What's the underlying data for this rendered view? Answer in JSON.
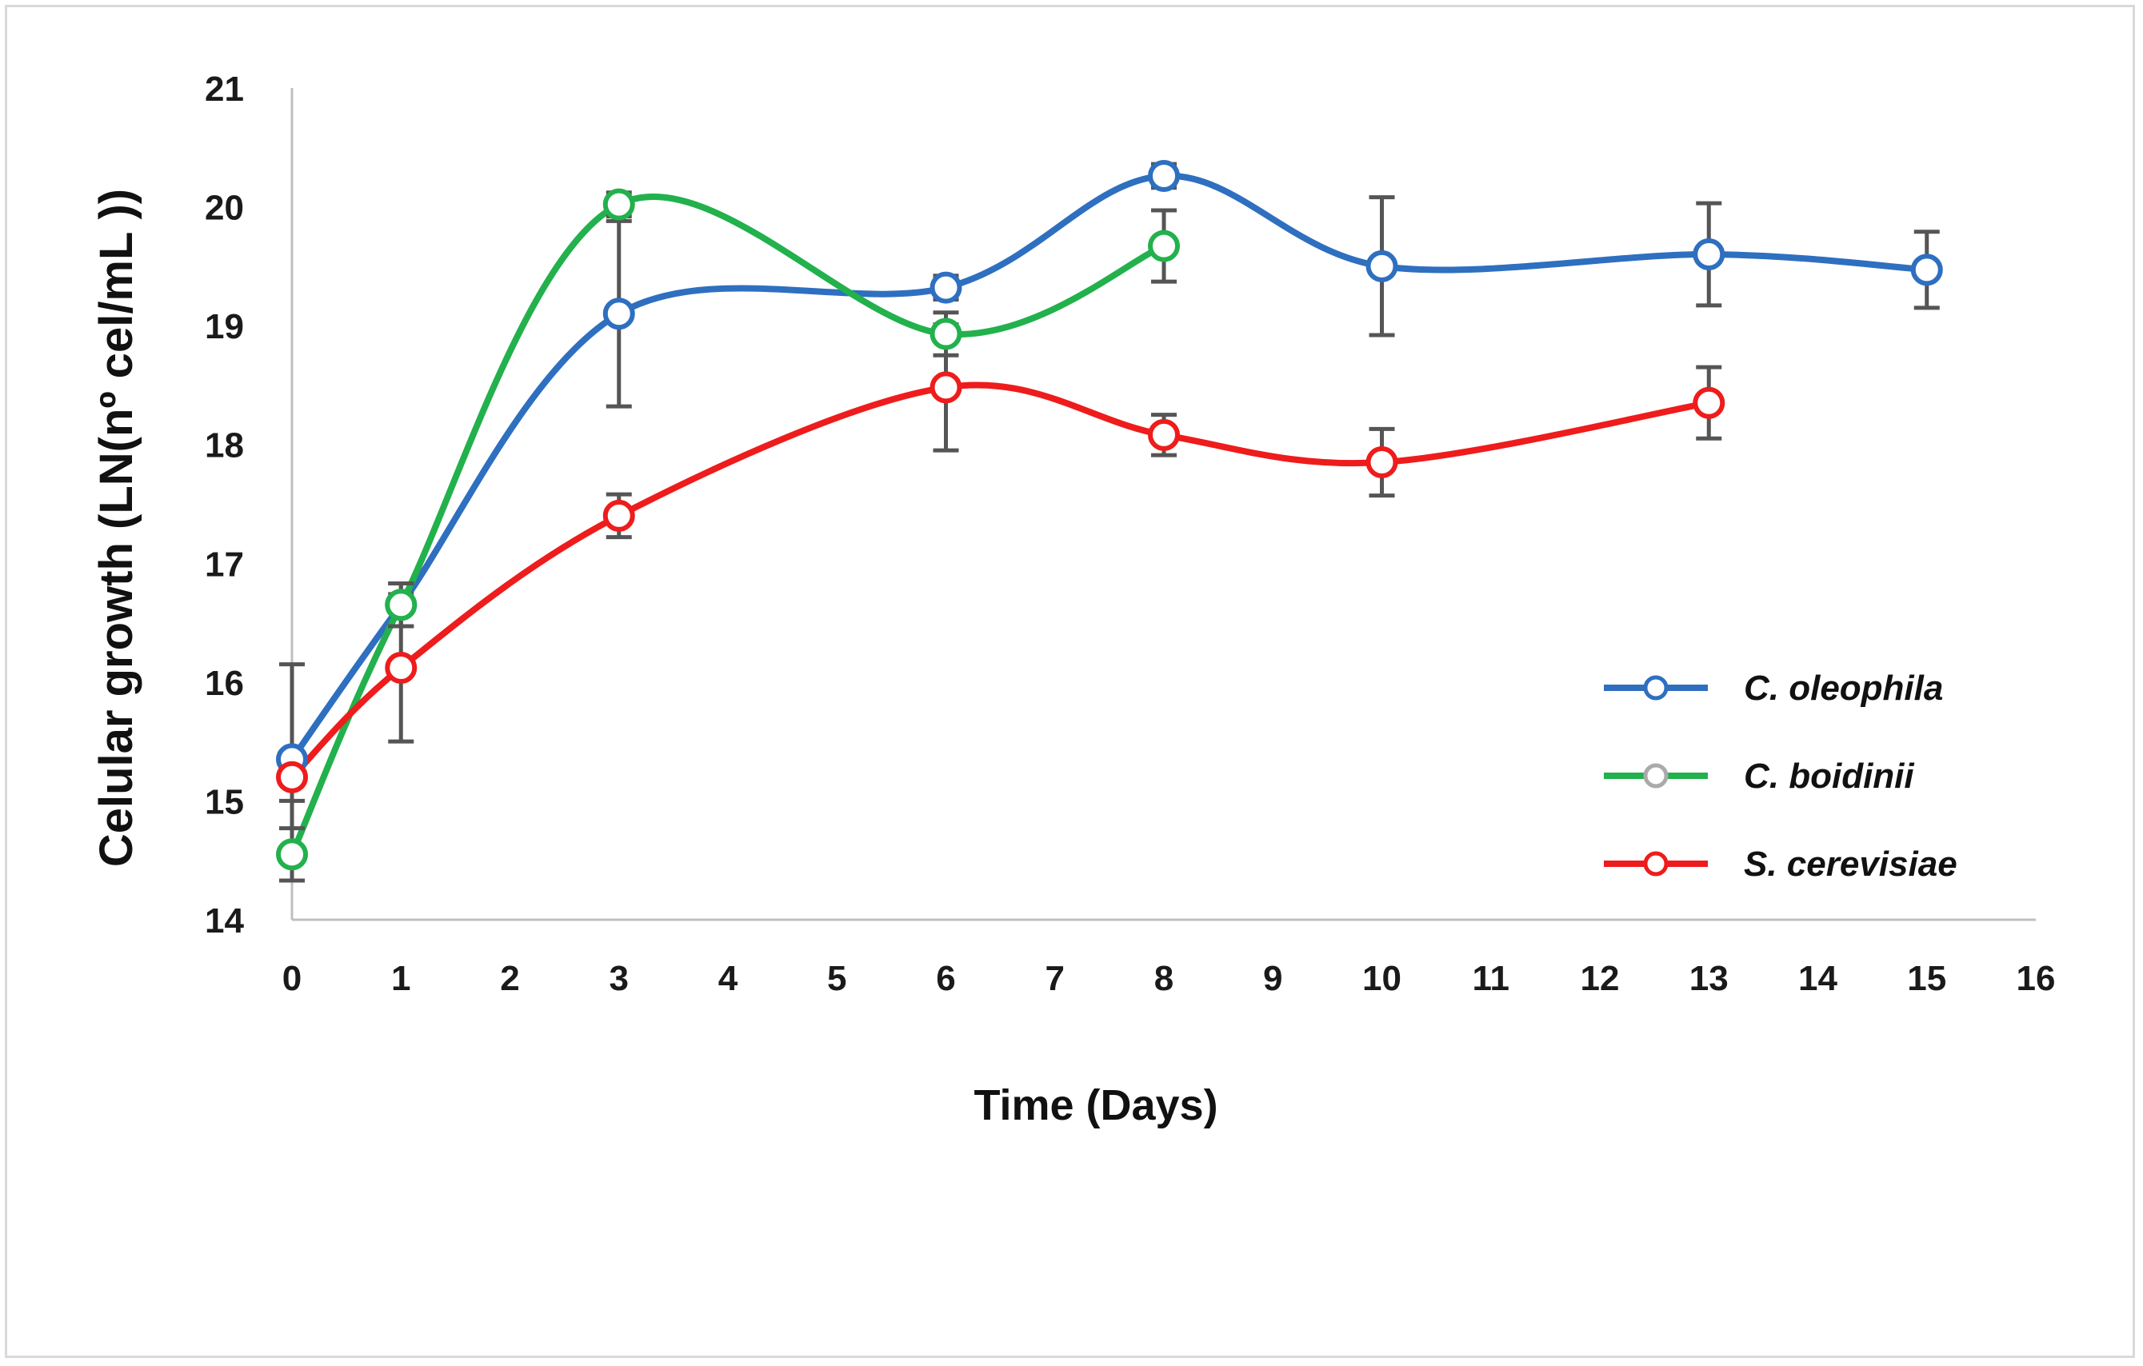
{
  "chart_data": {
    "type": "line",
    "title": "",
    "xlabel": "Time (Days)",
    "ylabel": "Celular growth (LN(nº cel/mL ))",
    "xlim": [
      0,
      16
    ],
    "ylim": [
      14,
      21
    ],
    "x_ticks": [
      "0",
      "1",
      "2",
      "3",
      "4",
      "5",
      "6",
      "7",
      "8",
      "9",
      "10",
      "11",
      "12",
      "13",
      "14",
      "15",
      "16"
    ],
    "y_ticks": [
      "14",
      "15",
      "16",
      "17",
      "18",
      "19",
      "20",
      "21"
    ],
    "grid": false,
    "legend_position": "right",
    "series": [
      {
        "name": "C. oleophila",
        "color": "#2e6fc0",
        "x": [
          0,
          1,
          3,
          6,
          8,
          10,
          13,
          15
        ],
        "y": [
          15.35,
          16.65,
          19.1,
          19.32,
          20.26,
          19.5,
          19.6,
          19.47
        ],
        "error": [
          0.8,
          0.18,
          0.78,
          0.1,
          0.1,
          0.58,
          0.43,
          0.32
        ]
      },
      {
        "name": "C. boidinii",
        "color": "#22b14c",
        "x": [
          0,
          1,
          3,
          6,
          8
        ],
        "y": [
          14.55,
          16.65,
          20.02,
          18.93,
          19.67
        ],
        "error": [
          0.22,
          0.18,
          0.1,
          0.18,
          0.3
        ]
      },
      {
        "name": "S. cerevisiae",
        "color": "#ee1c1c",
        "x": [
          0,
          1,
          3,
          6,
          8,
          10,
          13
        ],
        "y": [
          15.2,
          16.12,
          17.4,
          18.48,
          18.08,
          17.85,
          18.35
        ],
        "error": [
          0.2,
          0.62,
          0.18,
          0.53,
          0.17,
          0.28,
          0.3
        ]
      }
    ]
  }
}
